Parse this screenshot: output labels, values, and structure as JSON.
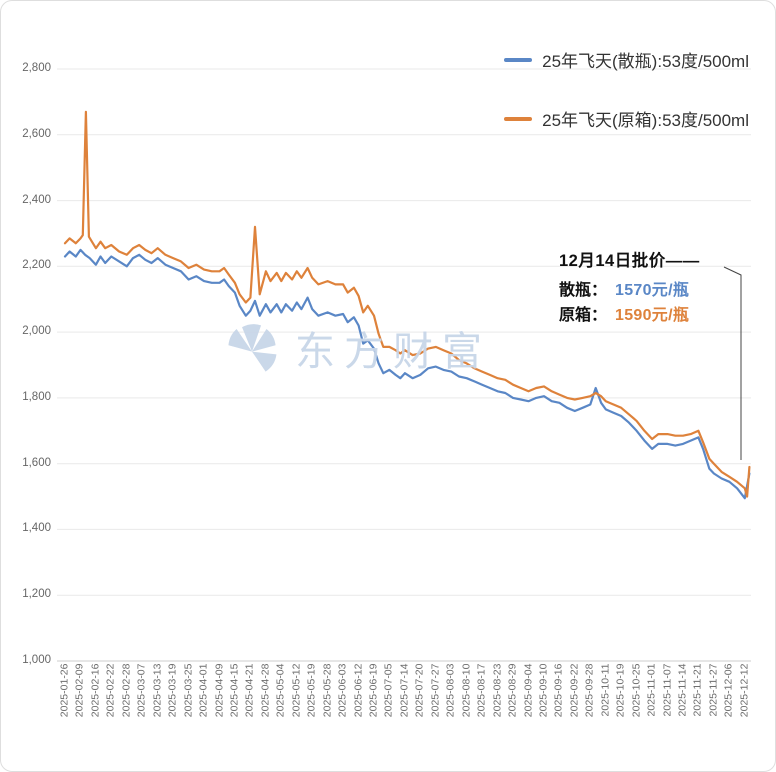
{
  "colors": {
    "blue": "#5a87c6",
    "orange": "#de823b",
    "watermark": "#c8d6e8",
    "grid": "#e9e9e9",
    "axis_line": "#cccccc",
    "leader": "#444444"
  },
  "annotation": {
    "title": "12月14日批价——",
    "rows": [
      {
        "label": "散瓶：",
        "value": "1570元/瓶"
      },
      {
        "label": "原箱：",
        "value": "1590元/瓶"
      }
    ]
  },
  "watermark": {
    "text": "东方财富"
  },
  "chart_data": {
    "type": "line",
    "title": "",
    "xlabel": "",
    "ylabel": "",
    "ylim": [
      1000,
      2800
    ],
    "y_tick_step": 200,
    "y_ticks": [
      "1,000",
      "1,200",
      "1,400",
      "1,600",
      "1,800",
      "2,000",
      "2,200",
      "2,400",
      "2,600",
      "2,800"
    ],
    "grid": true,
    "legend_position": "top-right",
    "categories": [
      "2025-01-26",
      "2025-02-09",
      "2025-02-16",
      "2025-02-22",
      "2025-02-28",
      "2025-03-07",
      "2025-03-13",
      "2025-03-19",
      "2025-03-25",
      "2025-04-01",
      "2025-04-09",
      "2025-04-15",
      "2025-04-21",
      "2025-04-28",
      "2025-05-04",
      "2025-05-12",
      "2025-05-19",
      "2025-05-28",
      "2025-06-03",
      "2025-06-12",
      "2025-06-19",
      "2025-07-05",
      "2025-07-14",
      "2025-07-20",
      "2025-07-27",
      "2025-08-03",
      "2025-08-10",
      "2025-08-17",
      "2025-08-23",
      "2025-08-29",
      "2025-09-04",
      "2025-09-10",
      "2025-09-16",
      "2025-09-22",
      "2025-09-28",
      "2025-10-11",
      "2025-10-19",
      "2025-10-25",
      "2025-11-01",
      "2025-11-07",
      "2025-11-14",
      "2025-11-21",
      "2025-11-27",
      "2025-12-06",
      "2025-12-12"
    ],
    "series": [
      {
        "name": "25年飞天(散瓶):53度/500ml",
        "color": "#5a87c6",
        "latest": 1570,
        "points": [
          [
            0,
            2230
          ],
          [
            0.3,
            2245
          ],
          [
            0.7,
            2230
          ],
          [
            1,
            2250
          ],
          [
            1.3,
            2235
          ],
          [
            1.6,
            2225
          ],
          [
            2,
            2205
          ],
          [
            2.3,
            2230
          ],
          [
            2.6,
            2210
          ],
          [
            3,
            2230
          ],
          [
            3.5,
            2215
          ],
          [
            4,
            2200
          ],
          [
            4.4,
            2225
          ],
          [
            4.8,
            2235
          ],
          [
            5.2,
            2220
          ],
          [
            5.6,
            2210
          ],
          [
            6,
            2225
          ],
          [
            6.5,
            2205
          ],
          [
            7,
            2195
          ],
          [
            7.5,
            2185
          ],
          [
            8,
            2160
          ],
          [
            8.5,
            2170
          ],
          [
            9,
            2155
          ],
          [
            9.5,
            2150
          ],
          [
            10,
            2150
          ],
          [
            10.3,
            2160
          ],
          [
            10.6,
            2140
          ],
          [
            11,
            2120
          ],
          [
            11.3,
            2080
          ],
          [
            11.7,
            2050
          ],
          [
            12,
            2065
          ],
          [
            12.3,
            2095
          ],
          [
            12.6,
            2050
          ],
          [
            13,
            2085
          ],
          [
            13.3,
            2060
          ],
          [
            13.7,
            2085
          ],
          [
            14,
            2060
          ],
          [
            14.3,
            2085
          ],
          [
            14.7,
            2065
          ],
          [
            15,
            2090
          ],
          [
            15.3,
            2070
          ],
          [
            15.7,
            2105
          ],
          [
            16,
            2070
          ],
          [
            16.4,
            2050
          ],
          [
            17,
            2060
          ],
          [
            17.5,
            2050
          ],
          [
            18,
            2055
          ],
          [
            18.3,
            2030
          ],
          [
            18.7,
            2045
          ],
          [
            19,
            2020
          ],
          [
            19.3,
            1965
          ],
          [
            19.6,
            1975
          ],
          [
            20,
            1950
          ],
          [
            20.3,
            1905
          ],
          [
            20.6,
            1875
          ],
          [
            21,
            1885
          ],
          [
            21.4,
            1870
          ],
          [
            21.7,
            1860
          ],
          [
            22,
            1875
          ],
          [
            22.5,
            1860
          ],
          [
            23,
            1870
          ],
          [
            23.5,
            1890
          ],
          [
            24,
            1895
          ],
          [
            24.5,
            1885
          ],
          [
            25,
            1880
          ],
          [
            25.5,
            1865
          ],
          [
            26,
            1860
          ],
          [
            26.5,
            1850
          ],
          [
            27,
            1840
          ],
          [
            27.5,
            1830
          ],
          [
            28,
            1820
          ],
          [
            28.5,
            1815
          ],
          [
            29,
            1800
          ],
          [
            29.5,
            1795
          ],
          [
            30,
            1790
          ],
          [
            30.5,
            1800
          ],
          [
            31,
            1805
          ],
          [
            31.5,
            1790
          ],
          [
            32,
            1785
          ],
          [
            32.5,
            1770
          ],
          [
            33,
            1760
          ],
          [
            33.5,
            1770
          ],
          [
            34,
            1780
          ],
          [
            34.35,
            1830
          ],
          [
            34.7,
            1785
          ],
          [
            35,
            1765
          ],
          [
            35.5,
            1755
          ],
          [
            36,
            1745
          ],
          [
            36.5,
            1725
          ],
          [
            37,
            1700
          ],
          [
            37.5,
            1670
          ],
          [
            38,
            1645
          ],
          [
            38.4,
            1660
          ],
          [
            39,
            1660
          ],
          [
            39.5,
            1655
          ],
          [
            40,
            1660
          ],
          [
            40.5,
            1670
          ],
          [
            41,
            1680
          ],
          [
            41.3,
            1645
          ],
          [
            41.7,
            1585
          ],
          [
            42,
            1570
          ],
          [
            42.5,
            1555
          ],
          [
            43,
            1545
          ],
          [
            43.5,
            1525
          ],
          [
            44,
            1495
          ],
          [
            44.3,
            1570
          ]
        ]
      },
      {
        "name": "25年飞天(原箱):53度/500ml",
        "color": "#de823b",
        "latest": 1590,
        "points": [
          [
            0,
            2270
          ],
          [
            0.3,
            2285
          ],
          [
            0.7,
            2270
          ],
          [
            1,
            2285
          ],
          [
            1.15,
            2295
          ],
          [
            1.35,
            2670
          ],
          [
            1.55,
            2290
          ],
          [
            2,
            2255
          ],
          [
            2.3,
            2275
          ],
          [
            2.6,
            2255
          ],
          [
            3,
            2265
          ],
          [
            3.5,
            2245
          ],
          [
            4,
            2235
          ],
          [
            4.4,
            2255
          ],
          [
            4.8,
            2265
          ],
          [
            5.2,
            2250
          ],
          [
            5.6,
            2240
          ],
          [
            6,
            2255
          ],
          [
            6.5,
            2235
          ],
          [
            7,
            2225
          ],
          [
            7.5,
            2215
          ],
          [
            8,
            2195
          ],
          [
            8.5,
            2205
          ],
          [
            9,
            2190
          ],
          [
            9.5,
            2185
          ],
          [
            10,
            2185
          ],
          [
            10.3,
            2195
          ],
          [
            10.6,
            2175
          ],
          [
            11,
            2150
          ],
          [
            11.3,
            2115
          ],
          [
            11.7,
            2090
          ],
          [
            12,
            2105
          ],
          [
            12.3,
            2320
          ],
          [
            12.6,
            2115
          ],
          [
            13,
            2185
          ],
          [
            13.3,
            2155
          ],
          [
            13.7,
            2180
          ],
          [
            14,
            2155
          ],
          [
            14.3,
            2180
          ],
          [
            14.7,
            2160
          ],
          [
            15,
            2185
          ],
          [
            15.3,
            2165
          ],
          [
            15.7,
            2195
          ],
          [
            16,
            2165
          ],
          [
            16.4,
            2145
          ],
          [
            17,
            2155
          ],
          [
            17.5,
            2145
          ],
          [
            18,
            2145
          ],
          [
            18.3,
            2120
          ],
          [
            18.7,
            2135
          ],
          [
            19,
            2110
          ],
          [
            19.3,
            2060
          ],
          [
            19.6,
            2080
          ],
          [
            20,
            2050
          ],
          [
            20.3,
            1995
          ],
          [
            20.6,
            1955
          ],
          [
            21,
            1955
          ],
          [
            21.4,
            1945
          ],
          [
            21.7,
            1935
          ],
          [
            22,
            1945
          ],
          [
            22.5,
            1930
          ],
          [
            23,
            1935
          ],
          [
            23.5,
            1950
          ],
          [
            24,
            1955
          ],
          [
            24.5,
            1945
          ],
          [
            25,
            1935
          ],
          [
            25.5,
            1915
          ],
          [
            26,
            1905
          ],
          [
            26.5,
            1890
          ],
          [
            27,
            1880
          ],
          [
            27.5,
            1870
          ],
          [
            28,
            1860
          ],
          [
            28.5,
            1855
          ],
          [
            29,
            1840
          ],
          [
            29.5,
            1830
          ],
          [
            30,
            1820
          ],
          [
            30.5,
            1830
          ],
          [
            31,
            1835
          ],
          [
            31.5,
            1820
          ],
          [
            32,
            1810
          ],
          [
            32.5,
            1800
          ],
          [
            33,
            1795
          ],
          [
            33.5,
            1800
          ],
          [
            34,
            1805
          ],
          [
            34.35,
            1815
          ],
          [
            34.7,
            1805
          ],
          [
            35,
            1790
          ],
          [
            35.5,
            1780
          ],
          [
            36,
            1770
          ],
          [
            36.5,
            1750
          ],
          [
            37,
            1730
          ],
          [
            37.5,
            1700
          ],
          [
            38,
            1675
          ],
          [
            38.4,
            1690
          ],
          [
            39,
            1690
          ],
          [
            39.5,
            1685
          ],
          [
            40,
            1685
          ],
          [
            40.5,
            1690
          ],
          [
            41,
            1700
          ],
          [
            41.3,
            1665
          ],
          [
            41.7,
            1615
          ],
          [
            42,
            1600
          ],
          [
            42.5,
            1575
          ],
          [
            43,
            1560
          ],
          [
            43.5,
            1545
          ],
          [
            44,
            1525
          ],
          [
            44.15,
            1500
          ],
          [
            44.3,
            1590
          ]
        ]
      }
    ]
  }
}
